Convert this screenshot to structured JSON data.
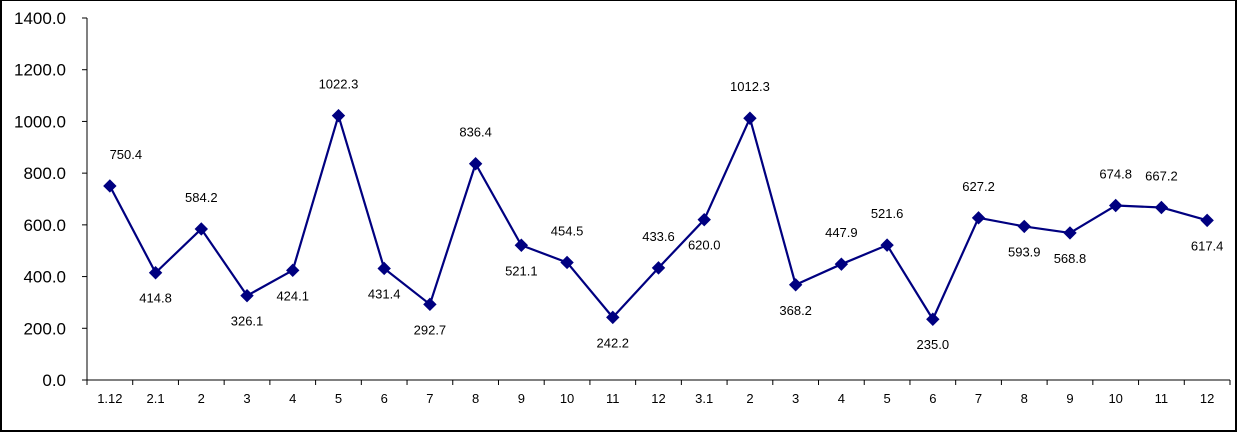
{
  "chart_data": {
    "type": "line",
    "title": "",
    "xlabel": "",
    "ylabel": "",
    "ylim": [
      0,
      1400
    ],
    "y_ticks": [
      "0.0",
      "200.0",
      "400.0",
      "600.0",
      "800.0",
      "1000.0",
      "1200.0",
      "1400.0"
    ],
    "grid": false,
    "legend": "none",
    "categories": [
      "1.12",
      "2.1",
      "2",
      "3",
      "4",
      "5",
      "6",
      "7",
      "8",
      "9",
      "10",
      "11",
      "12",
      "3.1",
      "2",
      "3",
      "4",
      "5",
      "6",
      "7",
      "8",
      "9",
      "10",
      "11",
      "12"
    ],
    "series": [
      {
        "color": "#000080",
        "marker": "diamond",
        "values": [
          750.4,
          414.8,
          584.2,
          326.1,
          424.1,
          1022.3,
          431.4,
          292.7,
          836.4,
          521.1,
          454.5,
          242.2,
          433.6,
          620.0,
          1012.3,
          368.2,
          447.9,
          521.6,
          235.0,
          627.2,
          593.9,
          568.8,
          674.8,
          667.2,
          617.4
        ],
        "labels": [
          "750.4",
          "414.8",
          "584.2",
          "326.1",
          "424.1",
          "1022.3",
          "431.4",
          "292.7",
          "836.4",
          "521.1",
          "454.5",
          "242.2",
          "433.6",
          "620.0",
          "1012.3",
          "368.2",
          "447.9",
          "521.6",
          "235.0",
          "627.2",
          "593.9",
          "568.8",
          "674.8",
          "667.2",
          "617.4"
        ]
      }
    ]
  }
}
